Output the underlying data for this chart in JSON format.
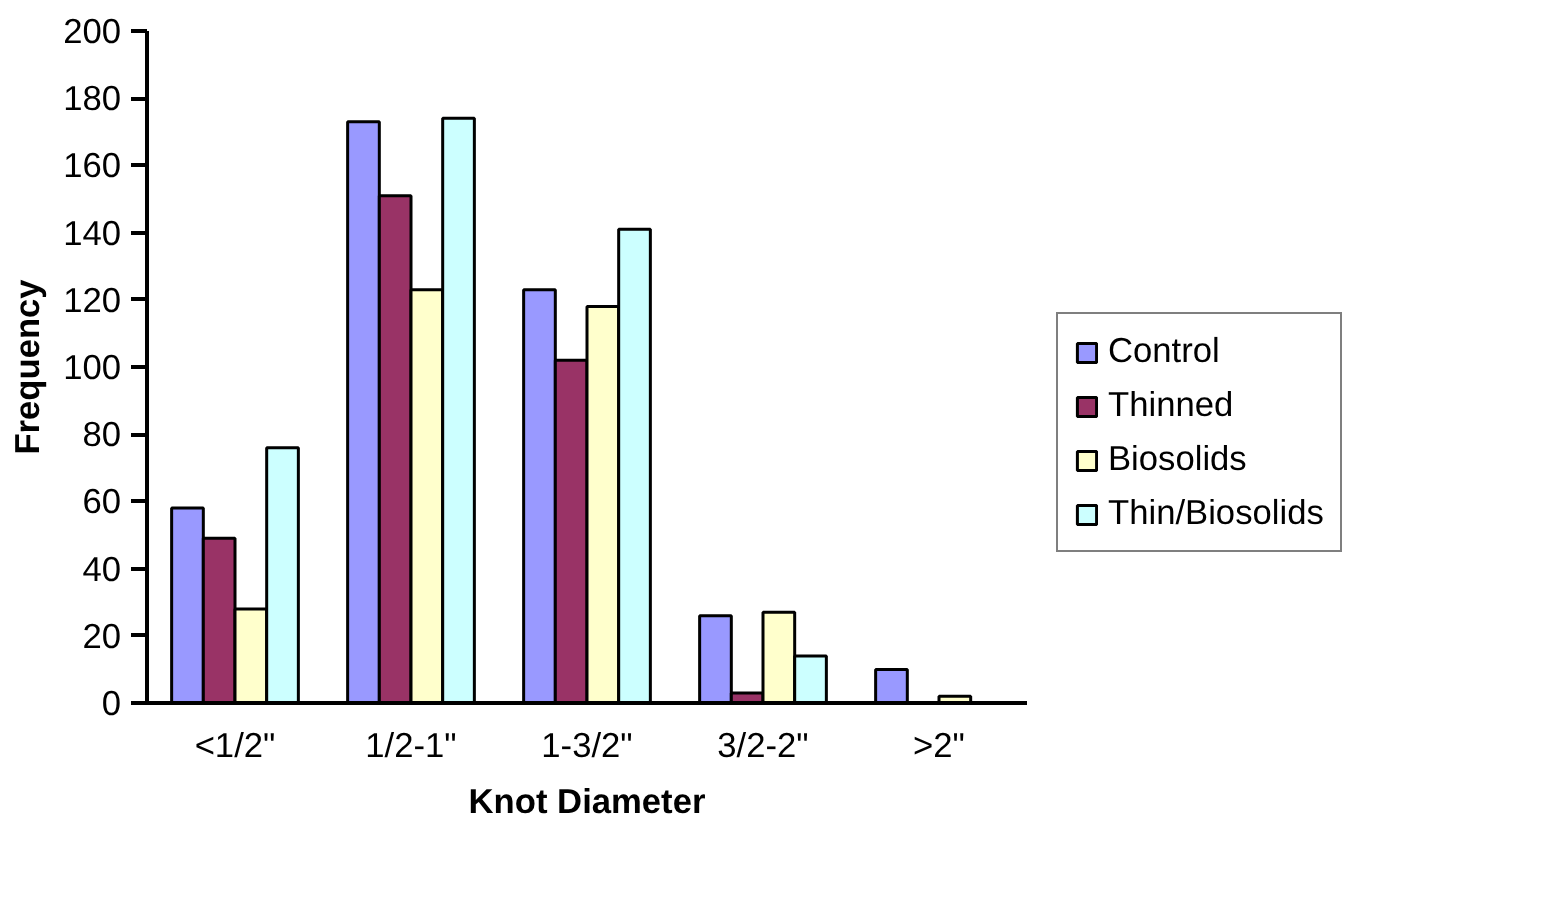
{
  "chart_data": {
    "type": "bar",
    "xlabel": "Knot Diameter",
    "ylabel": "Frequency",
    "categories": [
      "<1/2\"",
      "1/2-1\"",
      "1-3/2\"",
      "3/2-2\"",
      ">2\""
    ],
    "series": [
      {
        "name": "Control",
        "color": "#9999ff",
        "values": [
          58,
          173,
          123,
          26,
          10
        ]
      },
      {
        "name": "Thinned",
        "color": "#993366",
        "values": [
          49,
          151,
          102,
          3,
          null
        ]
      },
      {
        "name": "Biosolids",
        "color": "#ffffcc",
        "values": [
          28,
          123,
          118,
          27,
          2
        ]
      },
      {
        "name": "Thin/Biosolids",
        "color": "#ccffff",
        "values": [
          76,
          174,
          141,
          14,
          null
        ]
      }
    ],
    "ylim": [
      0,
      200
    ],
    "yticks": [
      0,
      20,
      40,
      60,
      80,
      100,
      120,
      140,
      160,
      180,
      200
    ],
    "grid": false,
    "legend": "right"
  }
}
